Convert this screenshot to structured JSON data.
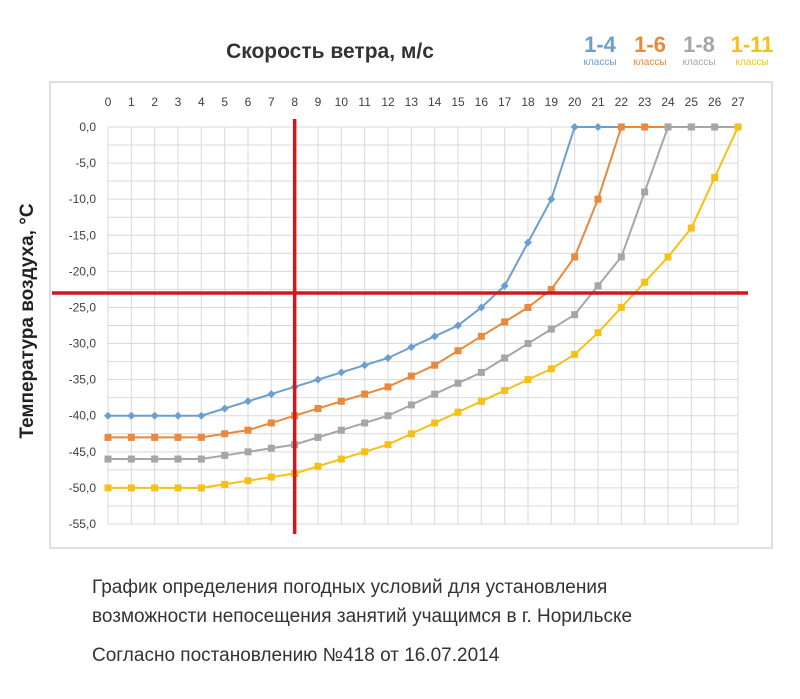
{
  "chart_data": {
    "type": "line",
    "title": "Скорость ветра, м/с",
    "ylabel": "Температура воздуха, °С",
    "xlim": [
      0,
      27
    ],
    "ylim": [
      -55,
      0
    ],
    "x_ticks": [
      0,
      1,
      2,
      3,
      4,
      5,
      6,
      7,
      8,
      9,
      10,
      11,
      12,
      13,
      14,
      15,
      16,
      17,
      18,
      19,
      20,
      21,
      22,
      23,
      24,
      25,
      26,
      27
    ],
    "y_ticks": [
      "0,0",
      "-5,0",
      "-10,0",
      "-15,0",
      "-20,0",
      "-25,0",
      "-30,0",
      "-35,0",
      "-40,0",
      "-45,0",
      "-50,0",
      "-55,0"
    ],
    "y_tick_values": [
      0,
      -5,
      -10,
      -15,
      -20,
      -25,
      -30,
      -35,
      -40,
      -45,
      -50,
      -55
    ],
    "grid": true,
    "x_axis_position": "top",
    "legend_position": "top-right",
    "series": [
      {
        "key": "1-4",
        "sub": "классы",
        "color": "#6b9fd1",
        "x": [
          0,
          1,
          2,
          3,
          4,
          5,
          6,
          7,
          8,
          9,
          10,
          11,
          12,
          13,
          14,
          15,
          16,
          17,
          18,
          19,
          20,
          21,
          22,
          23,
          24,
          25,
          26,
          27
        ],
        "y": [
          -40,
          -40,
          -40,
          -40,
          -40,
          -39,
          -38,
          -37,
          -36,
          -35,
          -34,
          -33,
          -32,
          -30.5,
          -29,
          -27.5,
          -25,
          -22,
          -16,
          -10,
          0,
          0,
          0,
          0,
          0,
          0,
          0,
          0
        ]
      },
      {
        "key": "1-6",
        "sub": "классы",
        "color": "#e8893c",
        "x": [
          0,
          1,
          2,
          3,
          4,
          5,
          6,
          7,
          8,
          9,
          10,
          11,
          12,
          13,
          14,
          15,
          16,
          17,
          18,
          19,
          20,
          21,
          22,
          23,
          24,
          25,
          26,
          27
        ],
        "y": [
          -43,
          -43,
          -43,
          -43,
          -43,
          -42.5,
          -42,
          -41,
          -40,
          -39,
          -38,
          -37,
          -36,
          -34.5,
          -33,
          -31,
          -29,
          -27,
          -25,
          -22.5,
          -18,
          -10,
          0,
          0,
          0,
          0,
          0,
          0
        ]
      },
      {
        "key": "1-8",
        "sub": "классы",
        "color": "#a6a6a6",
        "x": [
          0,
          1,
          2,
          3,
          4,
          5,
          6,
          7,
          8,
          9,
          10,
          11,
          12,
          13,
          14,
          15,
          16,
          17,
          18,
          19,
          20,
          21,
          22,
          23,
          24,
          25,
          26,
          27
        ],
        "y": [
          -46,
          -46,
          -46,
          -46,
          -46,
          -45.5,
          -45,
          -44.5,
          -44,
          -43,
          -42,
          -41,
          -40,
          -38.5,
          -37,
          -35.5,
          -34,
          -32,
          -30,
          -28,
          -26,
          -22,
          -18,
          -9,
          0,
          0,
          0,
          0
        ]
      },
      {
        "key": "1-11",
        "sub": "классы",
        "color": "#f5c116",
        "x": [
          0,
          1,
          2,
          3,
          4,
          5,
          6,
          7,
          8,
          9,
          10,
          11,
          12,
          13,
          14,
          15,
          16,
          17,
          18,
          19,
          20,
          21,
          22,
          23,
          24,
          25,
          26,
          27
        ],
        "y": [
          -50,
          -50,
          -50,
          -50,
          -50,
          -49.5,
          -49,
          -48.5,
          -48,
          -47,
          -46,
          -45,
          -44,
          -42.5,
          -41,
          -39.5,
          -38,
          -36.5,
          -35,
          -33.5,
          -31.5,
          -28.5,
          -25,
          -21.5,
          -18,
          -14,
          -7,
          0
        ]
      }
    ],
    "reference_lines": {
      "color": "#d0181e",
      "vertical_x": 8,
      "horizontal_y": -23
    }
  },
  "caption_line1": "График определения погодных условий для установления",
  "caption_line2": "возможности непосещения занятий учащимся в г. Норильске",
  "note": "Согласно постановлению №418 от 16.07.2014"
}
